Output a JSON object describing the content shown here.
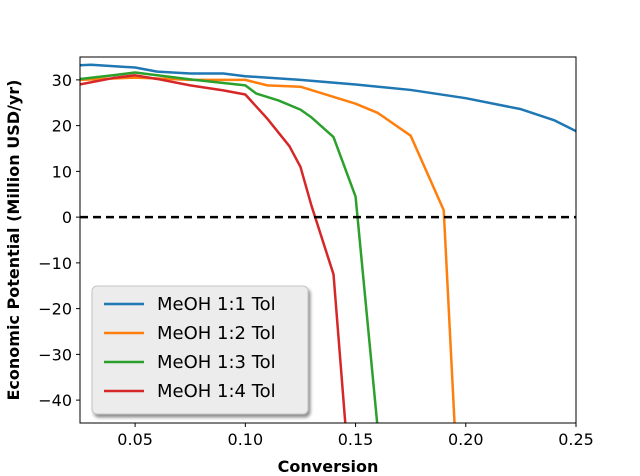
{
  "chart_data": {
    "type": "line",
    "xlabel": "Conversion",
    "ylabel": "Economic Potential (Million USD/yr)",
    "xlim": [
      0.025,
      0.25
    ],
    "ylim": [
      -45,
      35
    ],
    "xticks": [
      0.05,
      0.1,
      0.15,
      0.2,
      0.25
    ],
    "xtick_labels": [
      "0.05",
      "0.10",
      "0.15",
      "0.20",
      "0.25"
    ],
    "yticks": [
      -40,
      -30,
      -20,
      -10,
      0,
      10,
      20,
      30
    ],
    "ytick_labels": [
      "−40",
      "−30",
      "−20",
      "−10",
      "0",
      "10",
      "20",
      "30"
    ],
    "grid": false,
    "legend_position": "bottom-left",
    "reference_line": {
      "y": 0,
      "style": "dashed",
      "color": "#000000"
    },
    "series": [
      {
        "name": "MeOH 1:1 Tol",
        "color": "#1f77b4",
        "x": [
          0.025,
          0.03,
          0.05,
          0.06,
          0.075,
          0.09,
          0.1,
          0.125,
          0.15,
          0.175,
          0.2,
          0.225,
          0.24,
          0.25
        ],
        "y": [
          33.2,
          33.3,
          32.7,
          31.8,
          31.4,
          31.4,
          30.8,
          30.0,
          29.0,
          27.8,
          26.0,
          23.6,
          21.2,
          18.8
        ]
      },
      {
        "name": "MeOH 1:2 Tol",
        "color": "#ff7f0e",
        "x": [
          0.025,
          0.04,
          0.05,
          0.06,
          0.075,
          0.09,
          0.1,
          0.11,
          0.125,
          0.15,
          0.16,
          0.175,
          0.19,
          0.195
        ],
        "y": [
          30.0,
          30.3,
          30.5,
          30.3,
          30.0,
          30.0,
          30.0,
          28.8,
          28.5,
          24.8,
          22.8,
          17.8,
          1.5,
          -46.0
        ]
      },
      {
        "name": "MeOH 1:3 Tol",
        "color": "#2ca02c",
        "x": [
          0.025,
          0.04,
          0.05,
          0.06,
          0.075,
          0.1,
          0.105,
          0.115,
          0.125,
          0.13,
          0.14,
          0.15,
          0.16
        ],
        "y": [
          30.2,
          31.0,
          31.6,
          31.0,
          30.1,
          28.8,
          27.0,
          25.5,
          23.5,
          21.8,
          17.5,
          4.5,
          -46.0
        ]
      },
      {
        "name": "MeOH 1:4 Tol",
        "color": "#d62728",
        "x": [
          0.025,
          0.04,
          0.05,
          0.06,
          0.075,
          0.09,
          0.1,
          0.11,
          0.12,
          0.125,
          0.13,
          0.14,
          0.1455
        ],
        "y": [
          29.0,
          30.4,
          31.0,
          30.2,
          28.8,
          27.7,
          26.8,
          21.5,
          15.5,
          11.0,
          2.5,
          -12.5,
          -46.0
        ]
      }
    ]
  }
}
